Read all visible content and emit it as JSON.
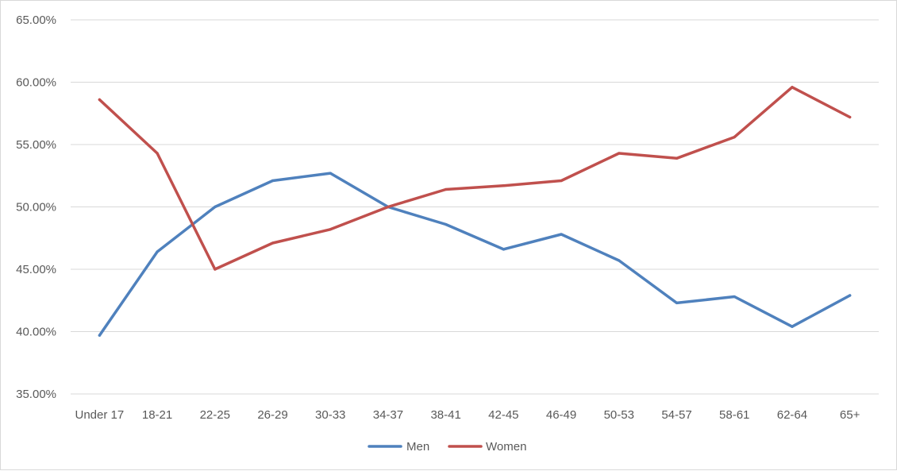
{
  "chart_data": {
    "type": "line",
    "categories": [
      "Under 17",
      "18-21",
      "22-25",
      "26-29",
      "30-33",
      "34-37",
      "38-41",
      "42-45",
      "46-49",
      "50-53",
      "54-57",
      "58-61",
      "62-64",
      "65+"
    ],
    "series": [
      {
        "name": "Men",
        "color": "#4f81bd",
        "values": [
          39.7,
          46.4,
          50.0,
          52.1,
          52.7,
          50.0,
          48.6,
          46.6,
          47.8,
          45.7,
          42.3,
          42.8,
          40.4,
          42.9
        ]
      },
      {
        "name": "Women",
        "color": "#c0504d",
        "values": [
          58.6,
          54.3,
          45.0,
          47.1,
          48.2,
          50.0,
          51.4,
          51.7,
          52.1,
          54.3,
          53.9,
          55.6,
          59.6,
          57.2
        ]
      }
    ],
    "ylim": [
      35,
      65
    ],
    "ytick_values": [
      35,
      40,
      45,
      50,
      55,
      60,
      65
    ],
    "ytick_labels": [
      "35.00%",
      "40.00%",
      "45.00%",
      "50.00%",
      "55.00%",
      "60.00%",
      "65.00%"
    ],
    "grid": true,
    "legend_position": "bottom",
    "title": "",
    "xlabel": "",
    "ylabel": ""
  },
  "colors": {
    "grid": "#d9d9d9",
    "text": "#595959"
  }
}
